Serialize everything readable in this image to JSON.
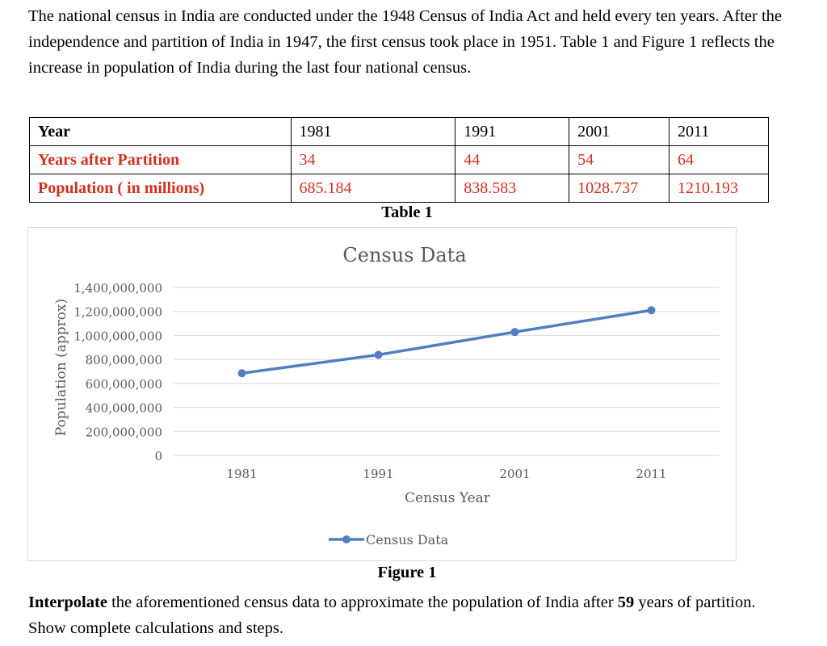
{
  "intro": "The national census in India are conducted under the 1948 Census of India Act and held every ten years. After the independence and partition of India in 1947, the first census took place in 1951. Table 1 and Figure 1 reflects the increase in population of India during the last four national census.",
  "table": {
    "rows": [
      {
        "label": "Year",
        "cells": [
          "1981",
          "1991",
          "2001",
          "2011"
        ]
      },
      {
        "label": "Years after Partition",
        "cells": [
          "34",
          "44",
          "54",
          "64"
        ]
      },
      {
        "label": "Population ( in millions)",
        "cells": [
          "685.184",
          "838.583",
          "1028.737",
          "1210.193"
        ]
      }
    ],
    "caption": "Table 1",
    "accent_color": "#d32f1f"
  },
  "chart_data": {
    "type": "line",
    "title": "Census Data",
    "xlabel": "Census Year",
    "ylabel": "Population (approx)",
    "categories": [
      "1981",
      "1991",
      "2001",
      "2011"
    ],
    "series": [
      {
        "name": "Census Data",
        "values": [
          685184000,
          838583000,
          1028737000,
          1210193000
        ],
        "color": "#4f7fbf"
      }
    ],
    "ylim": [
      0,
      1400000000
    ],
    "yticks": [
      "0",
      "200,000,000",
      "400,000,000",
      "600,000,000",
      "800,000,000",
      "1,000,000,000",
      "1,200,000,000",
      "1,400,000,000"
    ],
    "grid": true,
    "legend": "bottom"
  },
  "figure_caption": "Figure 1",
  "question": {
    "bold_start": "Interpolate",
    "text_a": " the aforementioned census data to approximate the population of India after ",
    "bold_years": "59",
    "text_b": " years of partition. Show complete calculations and steps."
  }
}
